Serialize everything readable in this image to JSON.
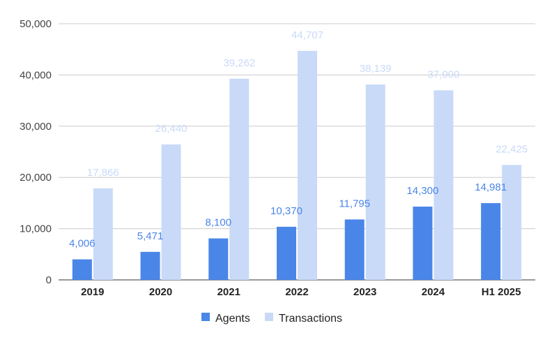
{
  "chart_data": {
    "type": "bar",
    "title": "",
    "xlabel": "",
    "ylabel": "",
    "categories": [
      "2019",
      "2020",
      "2021",
      "2022",
      "2023",
      "2024",
      "H1 2025"
    ],
    "ylim": [
      0,
      50000
    ],
    "yticks": [
      0,
      10000,
      20000,
      30000,
      40000,
      50000
    ],
    "ytick_labels": [
      "0",
      "10,000",
      "20,000",
      "30,000",
      "40,000",
      "50,000"
    ],
    "grid": true,
    "legend_position": "bottom-center",
    "series": [
      {
        "name": "Agents",
        "color": "#4a86e8",
        "label_color": "#4a86e8",
        "values": [
          4006,
          5471,
          8100,
          10370,
          11795,
          14300,
          14981
        ],
        "value_labels": [
          "4,006",
          "5,471",
          "8,100",
          "10,370",
          "11,795",
          "14,300",
          "14,981"
        ]
      },
      {
        "name": "Transactions",
        "color": "#c9daf8",
        "label_color": "#c9daf8",
        "values": [
          17866,
          26440,
          39262,
          44707,
          38139,
          37000,
          22425
        ],
        "value_labels": [
          "17,866",
          "26,440",
          "39,262",
          "44,707",
          "38,139",
          "37,000",
          "22,425"
        ]
      }
    ]
  }
}
